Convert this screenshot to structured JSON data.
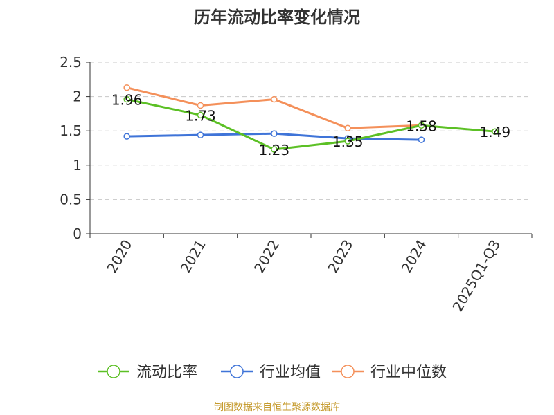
{
  "chart_data": {
    "type": "line",
    "title": "历年流动比率变化情况",
    "categories": [
      "2020",
      "2021",
      "2022",
      "2023",
      "2024",
      "2025Q1-Q3"
    ],
    "ylim": [
      0,
      2.5
    ],
    "yticks": [
      "0",
      "0.5",
      "1",
      "1.5",
      "2",
      "2.5"
    ],
    "grid": "horizontal-dashed",
    "legend_position": "bottom",
    "series": [
      {
        "name": "流动比率",
        "color": "#5cc025",
        "values": [
          1.96,
          1.73,
          1.23,
          1.35,
          1.58,
          1.49
        ],
        "labels": [
          "1.96",
          "1.73",
          "1.23",
          "1.35",
          "1.58",
          "1.49"
        ]
      },
      {
        "name": "行业均值",
        "color": "#3f74d8",
        "values": [
          1.42,
          1.44,
          1.46,
          1.39,
          1.37,
          null
        ]
      },
      {
        "name": "行业中位数",
        "color": "#f4905a",
        "values": [
          2.13,
          1.87,
          1.96,
          1.54,
          1.58,
          null
        ]
      }
    ]
  },
  "footer": {
    "source": "制图数据来自恒生聚源数据库"
  }
}
